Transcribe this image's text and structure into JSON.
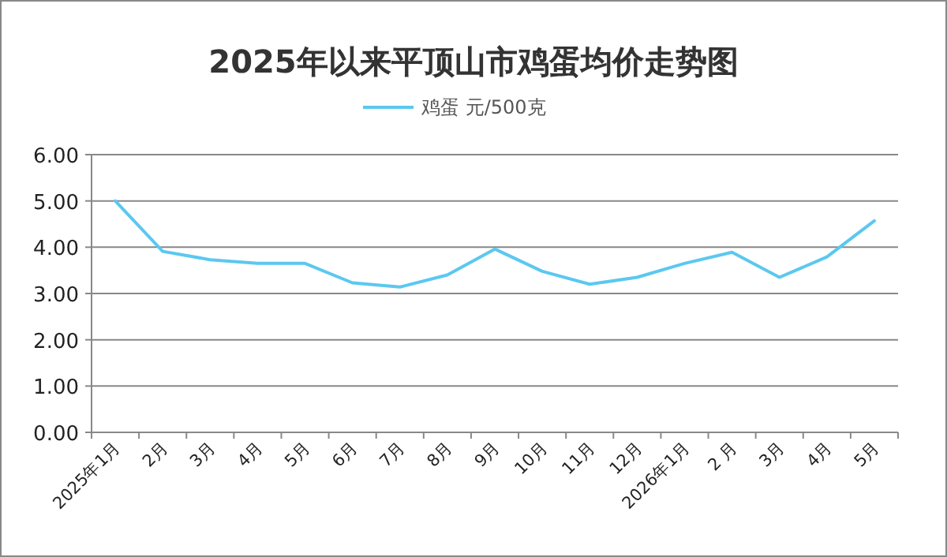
{
  "chart_data": {
    "type": "line",
    "title": "2025年以来平顶山市鸡蛋均价走势图",
    "categories": [
      "2025年1月",
      "2月",
      "3月",
      "4月",
      "5月",
      "6月",
      "7月",
      "8月",
      "9月",
      "10月",
      "11月",
      "12月",
      "2026年1月",
      "2 月",
      "3月",
      "4月",
      "5月"
    ],
    "series": [
      {
        "name": "鸡蛋 元/500克",
        "color": "#5bc8f0",
        "values": [
          5.0,
          3.91,
          3.73,
          3.65,
          3.65,
          3.23,
          3.14,
          3.4,
          3.96,
          3.48,
          3.2,
          3.35,
          3.65,
          3.89,
          3.35,
          3.79,
          4.57
        ]
      }
    ],
    "ylim": [
      0,
      6
    ],
    "yticks": [
      {
        "value": 0,
        "label": "0.00"
      },
      {
        "value": 1,
        "label": "1.00"
      },
      {
        "value": 2,
        "label": "2.00"
      },
      {
        "value": 3,
        "label": "3.00"
      },
      {
        "value": 4,
        "label": "4.00"
      },
      {
        "value": 5,
        "label": "5.00"
      },
      {
        "value": 6,
        "label": "6.00"
      }
    ],
    "grid": "y",
    "legend": "top",
    "marker": "none",
    "line_style": "solid"
  }
}
